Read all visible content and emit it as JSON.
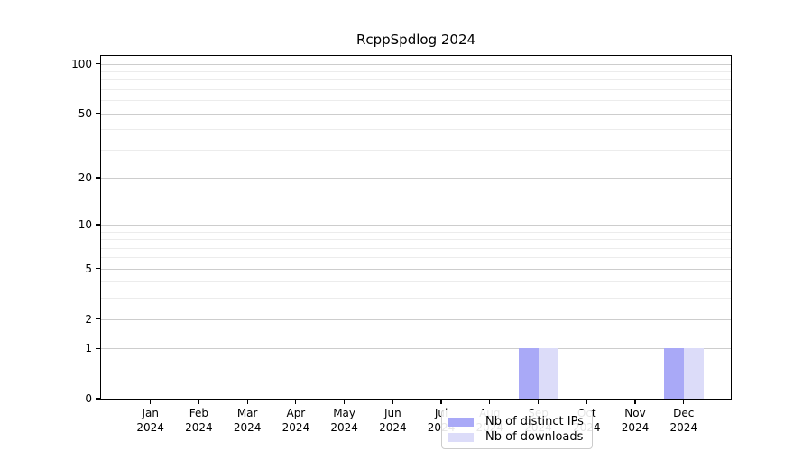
{
  "chart_data": {
    "type": "bar",
    "title": "RcppSpdlog 2024",
    "categories": [
      "Jan",
      "Feb",
      "Mar",
      "Apr",
      "May",
      "Jun",
      "Jul",
      "Aug",
      "Sep",
      "Oct",
      "Nov",
      "Dec"
    ],
    "x_axis": {
      "year": "2024"
    },
    "y_axis": {
      "scale": "log1p",
      "ticks": [
        0,
        1,
        2,
        5,
        10,
        20,
        50,
        100
      ],
      "minor_gridlines": [
        3,
        4,
        6,
        7,
        8,
        9,
        30,
        40,
        60,
        70,
        80,
        90
      ],
      "ylim": [
        0,
        111.4
      ]
    },
    "series": [
      {
        "name": "Nb of distinct IPs",
        "color": "#a9a9f7",
        "values": [
          0,
          0,
          0,
          0,
          0,
          0,
          0,
          0,
          1,
          0,
          0,
          1
        ]
      },
      {
        "name": "Nb of downloads",
        "color": "#dcdcf9",
        "values": [
          0,
          0,
          0,
          0,
          0,
          0,
          0,
          0,
          1,
          0,
          0,
          1
        ]
      }
    ],
    "legend": {
      "position": "bottom-center"
    },
    "grid": true
  },
  "colors": {
    "major_grid": "#cdcdcd",
    "minor_grid": "#ececec",
    "spine": "#000000",
    "legend_border": "#cccccc",
    "background": "#ffffff"
  }
}
